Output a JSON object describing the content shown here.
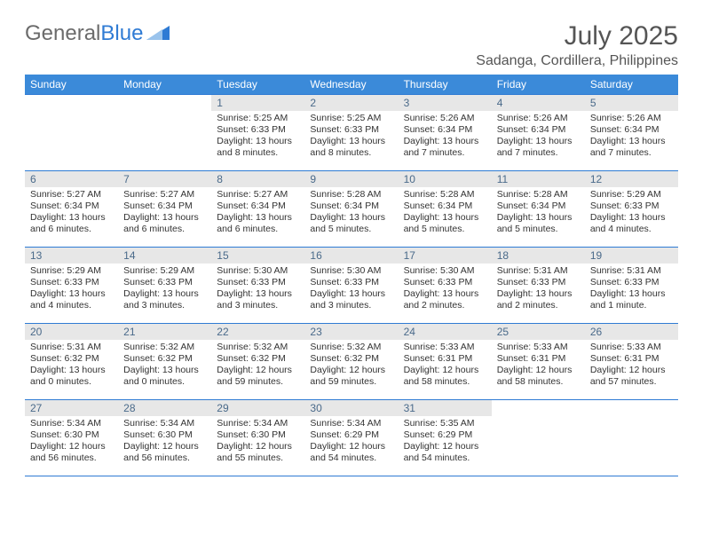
{
  "brand": {
    "part1": "General",
    "part2": "Blue"
  },
  "title": "July 2025",
  "location": "Sadanga, Cordillera, Philippines",
  "colors": {
    "header_bg": "#3b8ad9",
    "header_text": "#ffffff",
    "border": "#2f7bd4",
    "daynum_bg": "#e7e7e7",
    "daynum_text": "#4a6a8a",
    "body_text": "#333333",
    "logo_gray": "#6b6b6b",
    "logo_blue": "#2f7bd4",
    "page_bg": "#ffffff"
  },
  "typography": {
    "month_title_size": 30,
    "location_size": 16,
    "weekday_size": 12,
    "daynum_size": 12,
    "cell_text_size": 10.5
  },
  "weekdays": [
    "Sunday",
    "Monday",
    "Tuesday",
    "Wednesday",
    "Thursday",
    "Friday",
    "Saturday"
  ],
  "weeks": [
    [
      null,
      null,
      {
        "n": "1",
        "sr": "5:25 AM",
        "ss": "6:33 PM",
        "dl": "13 hours and 8 minutes."
      },
      {
        "n": "2",
        "sr": "5:25 AM",
        "ss": "6:33 PM",
        "dl": "13 hours and 8 minutes."
      },
      {
        "n": "3",
        "sr": "5:26 AM",
        "ss": "6:34 PM",
        "dl": "13 hours and 7 minutes."
      },
      {
        "n": "4",
        "sr": "5:26 AM",
        "ss": "6:34 PM",
        "dl": "13 hours and 7 minutes."
      },
      {
        "n": "5",
        "sr": "5:26 AM",
        "ss": "6:34 PM",
        "dl": "13 hours and 7 minutes."
      }
    ],
    [
      {
        "n": "6",
        "sr": "5:27 AM",
        "ss": "6:34 PM",
        "dl": "13 hours and 6 minutes."
      },
      {
        "n": "7",
        "sr": "5:27 AM",
        "ss": "6:34 PM",
        "dl": "13 hours and 6 minutes."
      },
      {
        "n": "8",
        "sr": "5:27 AM",
        "ss": "6:34 PM",
        "dl": "13 hours and 6 minutes."
      },
      {
        "n": "9",
        "sr": "5:28 AM",
        "ss": "6:34 PM",
        "dl": "13 hours and 5 minutes."
      },
      {
        "n": "10",
        "sr": "5:28 AM",
        "ss": "6:34 PM",
        "dl": "13 hours and 5 minutes."
      },
      {
        "n": "11",
        "sr": "5:28 AM",
        "ss": "6:34 PM",
        "dl": "13 hours and 5 minutes."
      },
      {
        "n": "12",
        "sr": "5:29 AM",
        "ss": "6:33 PM",
        "dl": "13 hours and 4 minutes."
      }
    ],
    [
      {
        "n": "13",
        "sr": "5:29 AM",
        "ss": "6:33 PM",
        "dl": "13 hours and 4 minutes."
      },
      {
        "n": "14",
        "sr": "5:29 AM",
        "ss": "6:33 PM",
        "dl": "13 hours and 3 minutes."
      },
      {
        "n": "15",
        "sr": "5:30 AM",
        "ss": "6:33 PM",
        "dl": "13 hours and 3 minutes."
      },
      {
        "n": "16",
        "sr": "5:30 AM",
        "ss": "6:33 PM",
        "dl": "13 hours and 3 minutes."
      },
      {
        "n": "17",
        "sr": "5:30 AM",
        "ss": "6:33 PM",
        "dl": "13 hours and 2 minutes."
      },
      {
        "n": "18",
        "sr": "5:31 AM",
        "ss": "6:33 PM",
        "dl": "13 hours and 2 minutes."
      },
      {
        "n": "19",
        "sr": "5:31 AM",
        "ss": "6:33 PM",
        "dl": "13 hours and 1 minute."
      }
    ],
    [
      {
        "n": "20",
        "sr": "5:31 AM",
        "ss": "6:32 PM",
        "dl": "13 hours and 0 minutes."
      },
      {
        "n": "21",
        "sr": "5:32 AM",
        "ss": "6:32 PM",
        "dl": "13 hours and 0 minutes."
      },
      {
        "n": "22",
        "sr": "5:32 AM",
        "ss": "6:32 PM",
        "dl": "12 hours and 59 minutes."
      },
      {
        "n": "23",
        "sr": "5:32 AM",
        "ss": "6:32 PM",
        "dl": "12 hours and 59 minutes."
      },
      {
        "n": "24",
        "sr": "5:33 AM",
        "ss": "6:31 PM",
        "dl": "12 hours and 58 minutes."
      },
      {
        "n": "25",
        "sr": "5:33 AM",
        "ss": "6:31 PM",
        "dl": "12 hours and 58 minutes."
      },
      {
        "n": "26",
        "sr": "5:33 AM",
        "ss": "6:31 PM",
        "dl": "12 hours and 57 minutes."
      }
    ],
    [
      {
        "n": "27",
        "sr": "5:34 AM",
        "ss": "6:30 PM",
        "dl": "12 hours and 56 minutes."
      },
      {
        "n": "28",
        "sr": "5:34 AM",
        "ss": "6:30 PM",
        "dl": "12 hours and 56 minutes."
      },
      {
        "n": "29",
        "sr": "5:34 AM",
        "ss": "6:30 PM",
        "dl": "12 hours and 55 minutes."
      },
      {
        "n": "30",
        "sr": "5:34 AM",
        "ss": "6:29 PM",
        "dl": "12 hours and 54 minutes."
      },
      {
        "n": "31",
        "sr": "5:35 AM",
        "ss": "6:29 PM",
        "dl": "12 hours and 54 minutes."
      },
      null,
      null
    ]
  ],
  "labels": {
    "sunrise": "Sunrise:",
    "sunset": "Sunset:",
    "daylight": "Daylight:"
  }
}
